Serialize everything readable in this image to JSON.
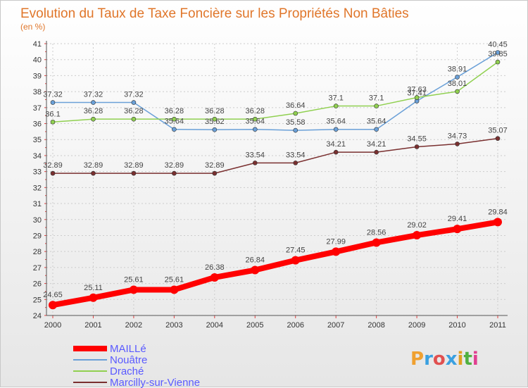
{
  "chart_data": {
    "type": "line",
    "title": "Evolution du Taux de Taxe Foncière sur les Propriétés Non Bâties",
    "subtitle": "(en %)",
    "x": [
      "2000",
      "2001",
      "2002",
      "2003",
      "2004",
      "2005",
      "2006",
      "2007",
      "2008",
      "2009",
      "2010",
      "2011"
    ],
    "ylim": [
      24,
      41
    ],
    "yticks": [
      24,
      25,
      26,
      27,
      28,
      29,
      30,
      31,
      32,
      33,
      34,
      35,
      36,
      37,
      38,
      39,
      40,
      41
    ],
    "grid": true,
    "legend_position": "bottom-left",
    "series": [
      {
        "name": "MAILLé",
        "color": "#ff0000",
        "values": [
          24.65,
          25.11,
          25.61,
          25.61,
          26.38,
          26.84,
          27.45,
          27.99,
          28.56,
          29.02,
          29.41,
          29.84
        ],
        "labels": [
          "24.65",
          "25.11",
          "25.61",
          "25.61",
          "26.38",
          "26.84",
          "27.45",
          "27.99",
          "28.56",
          "29.02",
          "29.41",
          "29.84"
        ]
      },
      {
        "name": "Nouâtre",
        "color": "#6aa0d8",
        "values": [
          37.32,
          37.32,
          37.32,
          35.64,
          35.62,
          35.64,
          35.58,
          35.64,
          35.64,
          37.41,
          38.91,
          40.45
        ],
        "labels": [
          "37.32",
          "37.32",
          "37.32",
          "35.64",
          "35.62",
          "35.64",
          "35.58",
          "35.64",
          "35.64",
          "37.41",
          "38.91",
          "40.45"
        ]
      },
      {
        "name": "Draché",
        "color": "#90d050",
        "values": [
          36.1,
          36.28,
          36.28,
          36.28,
          36.28,
          36.28,
          36.64,
          37.1,
          37.1,
          37.63,
          38.01,
          39.85
        ],
        "labels": [
          "36.1",
          "36.28",
          "36.28",
          "36.28",
          "36.28",
          "36.28",
          "36.64",
          "37.1",
          "37.1",
          "37.63",
          "38.01",
          "39.85"
        ]
      },
      {
        "name": "Marcilly-sur-Vienne",
        "color": "#7a3030",
        "values": [
          32.89,
          32.89,
          32.89,
          32.89,
          32.89,
          33.54,
          33.54,
          34.21,
          34.21,
          34.55,
          34.73,
          35.07
        ],
        "labels": [
          "32.89",
          "32.89",
          "32.89",
          "32.89",
          "32.89",
          "33.54",
          "33.54",
          "34.21",
          "34.21",
          "34.55",
          "34.73",
          "35.07"
        ]
      }
    ]
  },
  "logo": {
    "text": "Proxiti"
  }
}
